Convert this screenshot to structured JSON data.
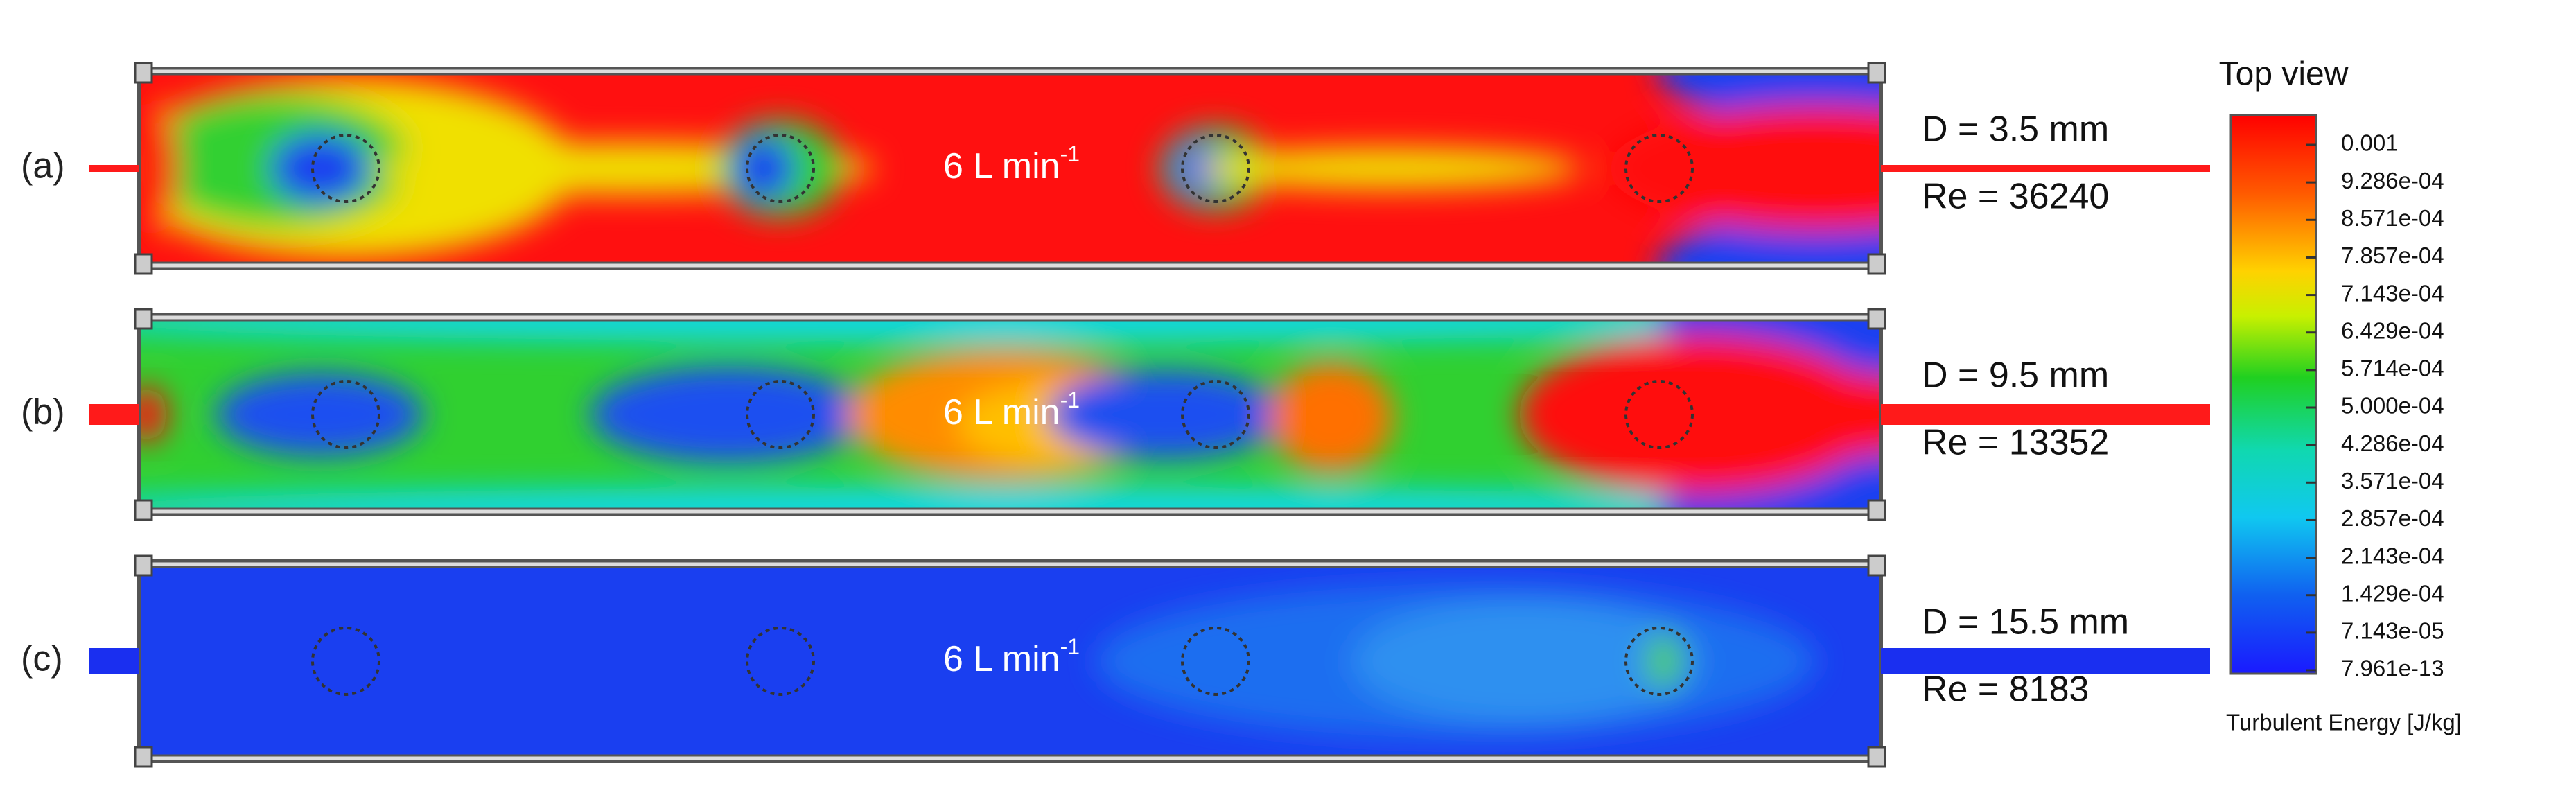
{
  "panels": [
    {
      "label": "(a)",
      "flow": {
        "text": "6 L min",
        "superscript": "-1"
      },
      "diameter": "D = 3.5 mm",
      "reynolds": "Re = 36240"
    },
    {
      "label": "(b)",
      "flow": {
        "text": "6 L min",
        "superscript": "-1"
      },
      "diameter": "D = 9.5 mm",
      "reynolds": "Re = 13352"
    },
    {
      "label": "(c)",
      "flow": {
        "text": "6 L min",
        "superscript": "-1"
      },
      "diameter": "D = 15.5 mm",
      "reynolds": "Re = 8183"
    }
  ],
  "colorbar": {
    "title": "Top view",
    "ticks": [
      "0.001",
      "9.286e-04",
      "8.571e-04",
      "7.857e-04",
      "7.143e-04",
      "6.429e-04",
      "5.714e-04",
      "5.000e-04",
      "4.286e-04",
      "3.571e-04",
      "2.857e-04",
      "2.143e-04",
      "1.429e-04",
      "7.143e-05",
      "7.961e-13"
    ],
    "label": "Turbulent Energy [J/kg]"
  }
}
